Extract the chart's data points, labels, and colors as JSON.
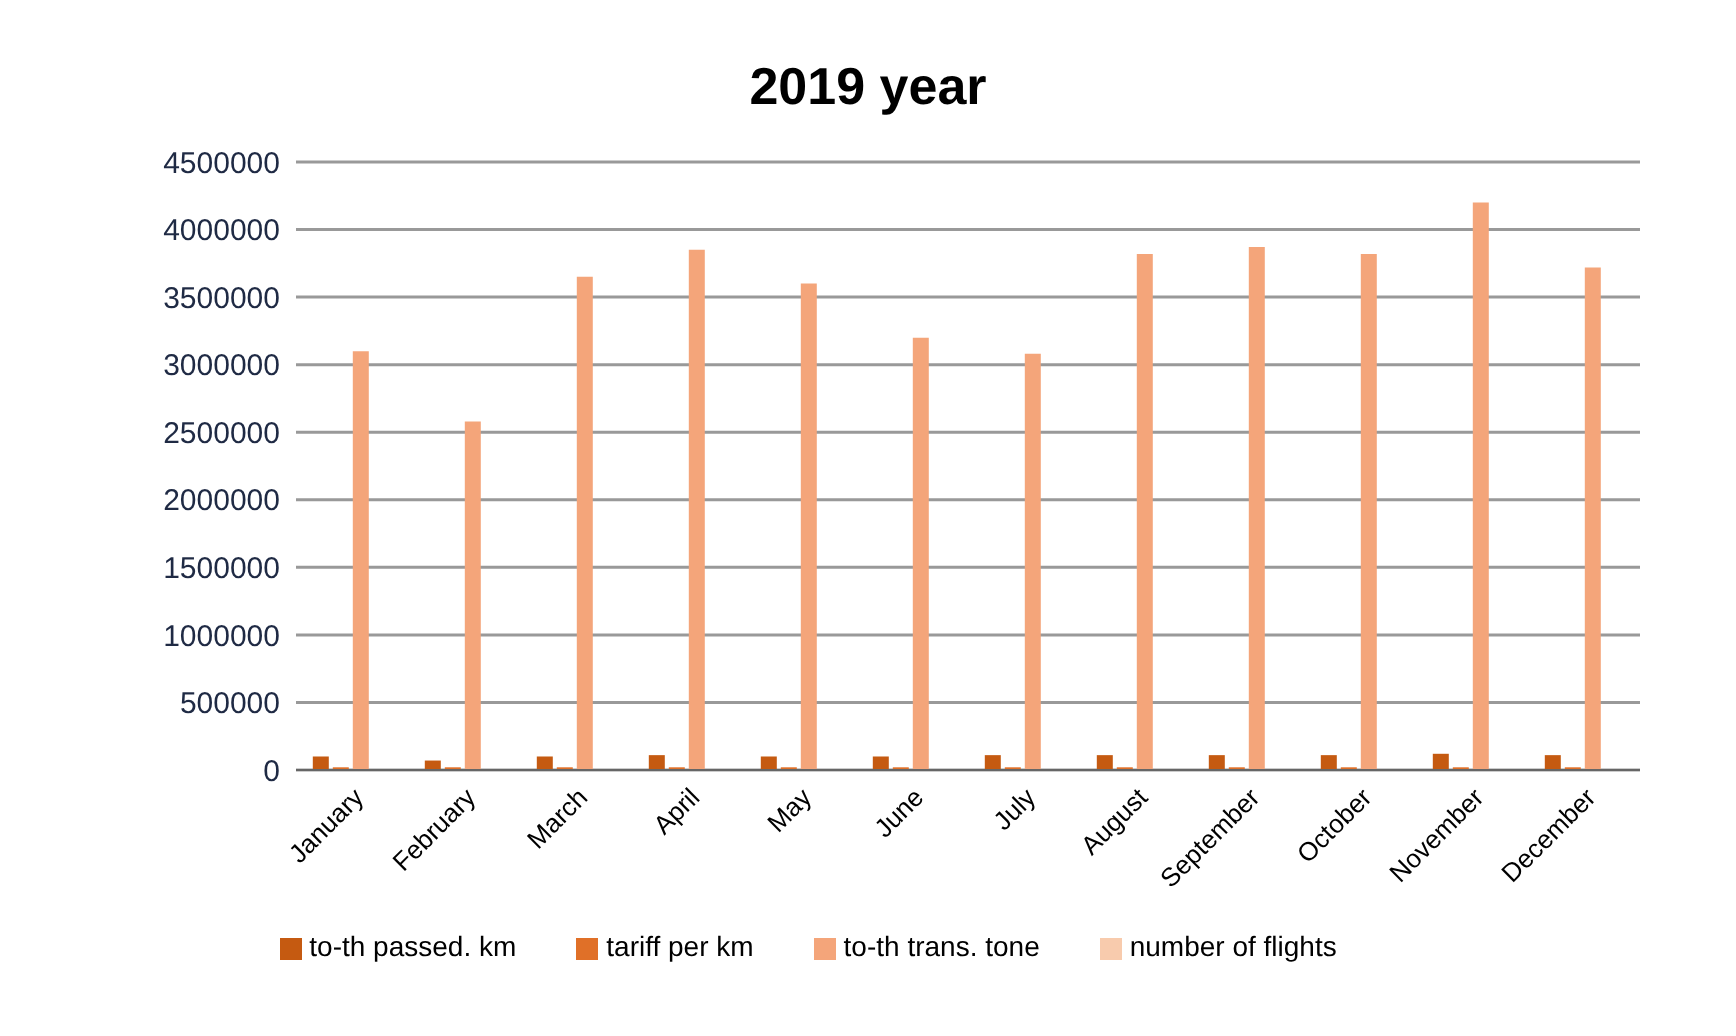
{
  "chart_data": {
    "type": "bar",
    "title": "2019 year",
    "categories": [
      "January",
      "February",
      "March",
      "April",
      "May",
      "June",
      "July",
      "August",
      "September",
      "October",
      "November",
      "December"
    ],
    "series": [
      {
        "name": "to-th passed. km",
        "color": "#c55a11",
        "values": [
          100000,
          70000,
          100000,
          110000,
          100000,
          100000,
          110000,
          110000,
          110000,
          110000,
          120000,
          110000
        ]
      },
      {
        "name": "tariff per km",
        "color": "#e07028",
        "values": [
          20000,
          20000,
          20000,
          20000,
          20000,
          20000,
          20000,
          20000,
          20000,
          20000,
          20000,
          20000
        ]
      },
      {
        "name": "to-th trans. tone",
        "color": "#f4a57a",
        "values": [
          3100000,
          2580000,
          3650000,
          3850000,
          3600000,
          3200000,
          3080000,
          3820000,
          3870000,
          3820000,
          4200000,
          3720000
        ]
      },
      {
        "name": "number of flights",
        "color": "#f8cbad",
        "values": [
          null,
          null,
          null,
          null,
          null,
          null,
          null,
          null,
          null,
          null,
          null,
          null
        ]
      }
    ],
    "ylim": [
      0,
      4500000
    ],
    "yticks": [
      0,
      500000,
      1000000,
      1500000,
      2000000,
      2500000,
      3000000,
      3500000,
      4000000,
      4500000
    ],
    "grid": "y",
    "legend": "bottom"
  }
}
